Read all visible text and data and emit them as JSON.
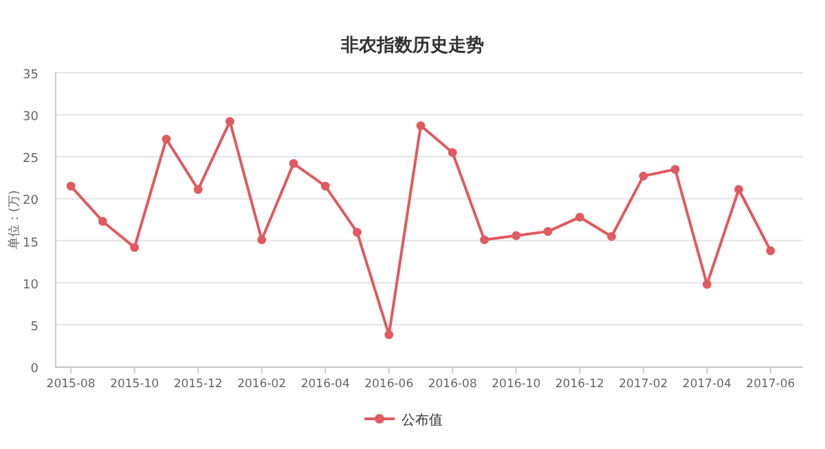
{
  "chart_data": {
    "type": "line",
    "title": "非农指数历史走势",
    "ylabel": "单位：(万)",
    "categories": [
      "2015-08",
      null,
      "2015-10",
      null,
      "2015-12",
      null,
      "2016-02",
      null,
      "2016-04",
      null,
      "2016-06",
      null,
      "2016-08",
      null,
      "2016-10",
      null,
      "2016-12",
      null,
      "2017-02",
      null,
      "2017-04",
      null,
      "2017-06"
    ],
    "series": [
      {
        "name": "公布值",
        "color": "#e05a5f",
        "values": [
          21.5,
          17.3,
          14.2,
          27.1,
          21.1,
          29.2,
          15.1,
          24.2,
          21.5,
          16.0,
          3.8,
          28.7,
          25.5,
          15.1,
          15.6,
          16.1,
          17.8,
          15.5,
          22.7,
          23.5,
          9.8,
          21.1,
          13.8
        ]
      }
    ],
    "ylim": [
      0,
      35
    ],
    "yticks": [
      0,
      5,
      10,
      15,
      20,
      25,
      30,
      35
    ],
    "grid": "y",
    "legend": "bottom",
    "marker": "circle",
    "line_style": "solid"
  }
}
